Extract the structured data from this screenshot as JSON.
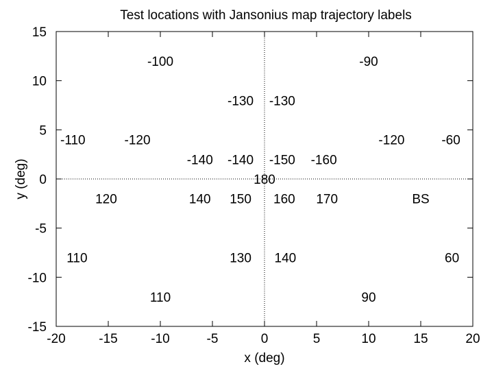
{
  "chart_data": {
    "type": "scatter",
    "title": "Test locations with Jansonius map trajectory labels",
    "xlabel": "x (deg)",
    "ylabel": "y (deg)",
    "xlim": [
      -20,
      20
    ],
    "ylim": [
      -15,
      15
    ],
    "xticks": [
      -20,
      -15,
      -10,
      -5,
      0,
      5,
      10,
      15,
      20
    ],
    "yticks": [
      -15,
      -10,
      -5,
      0,
      5,
      10,
      15
    ],
    "zero_axes": true,
    "grid": false,
    "points": [
      {
        "x": -10,
        "y": 12,
        "label": "-100"
      },
      {
        "x": 10,
        "y": 12,
        "label": "-90"
      },
      {
        "x": -2.3,
        "y": 8,
        "label": "-130"
      },
      {
        "x": 1.7,
        "y": 8,
        "label": "-130"
      },
      {
        "x": -18.4,
        "y": 4,
        "label": "-110"
      },
      {
        "x": -12.2,
        "y": 4,
        "label": "-120"
      },
      {
        "x": 12.2,
        "y": 4,
        "label": "-120"
      },
      {
        "x": 17.9,
        "y": 4,
        "label": "-60"
      },
      {
        "x": -6.2,
        "y": 2,
        "label": "-140"
      },
      {
        "x": -2.3,
        "y": 2,
        "label": "-140"
      },
      {
        "x": 1.7,
        "y": 2,
        "label": "-150"
      },
      {
        "x": 5.7,
        "y": 2,
        "label": "-160"
      },
      {
        "x": 0,
        "y": 0,
        "label": "180"
      },
      {
        "x": -15.2,
        "y": -2,
        "label": "120"
      },
      {
        "x": -6.2,
        "y": -2,
        "label": "140"
      },
      {
        "x": -2.3,
        "y": -2,
        "label": "150"
      },
      {
        "x": 1.9,
        "y": -2,
        "label": "160"
      },
      {
        "x": 6.0,
        "y": -2,
        "label": "170"
      },
      {
        "x": 15.0,
        "y": -2,
        "label": "BS"
      },
      {
        "x": -18.0,
        "y": -8,
        "label": "110"
      },
      {
        "x": -2.3,
        "y": -8,
        "label": "130"
      },
      {
        "x": 2.0,
        "y": -8,
        "label": "140"
      },
      {
        "x": 18.0,
        "y": -8,
        "label": "60"
      },
      {
        "x": -10.0,
        "y": -12,
        "label": "110"
      },
      {
        "x": 10.0,
        "y": -12,
        "label": "90"
      }
    ]
  }
}
